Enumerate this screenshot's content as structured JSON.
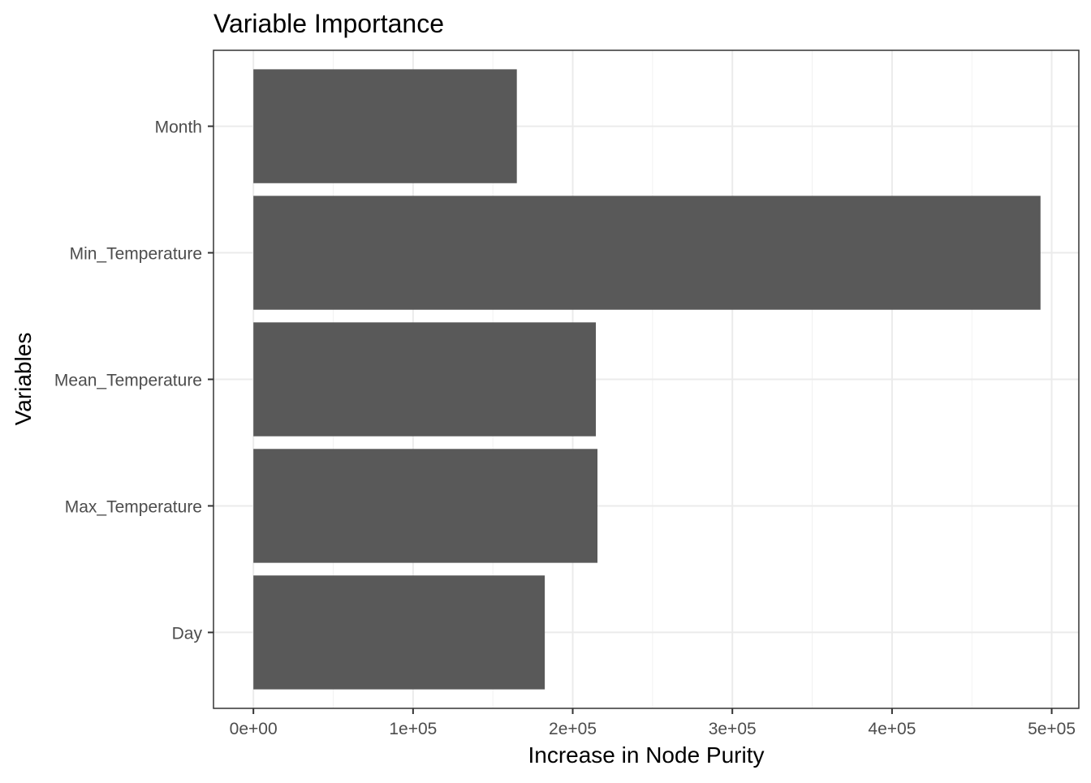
{
  "chart_data": {
    "type": "bar",
    "orientation": "horizontal",
    "title": "Variable Importance",
    "xlabel": "Increase in Node Purity",
    "ylabel": "Variables",
    "categories": [
      "Day",
      "Max_Temperature",
      "Mean_Temperature",
      "Min_Temperature",
      "Month"
    ],
    "values": [
      182500,
      215500,
      214500,
      493000,
      165000
    ],
    "xlim": [
      -25000,
      517000
    ],
    "xticks": [
      0,
      100000,
      200000,
      300000,
      400000,
      500000
    ],
    "xtick_labels": [
      "0e+00",
      "1e+05",
      "2e+05",
      "3e+05",
      "4e+05",
      "5e+05"
    ],
    "grid": true,
    "legend": "none",
    "bar_color": "#595959"
  }
}
